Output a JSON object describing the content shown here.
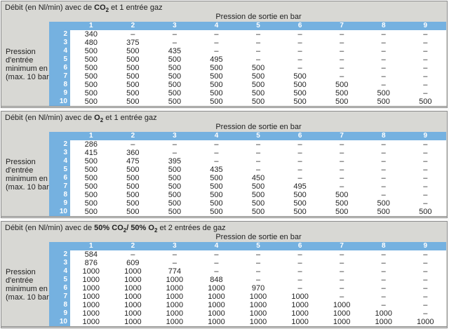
{
  "colors": {
    "header_blue": "#75b1e0",
    "block_bg": "#d8d8d4",
    "cell_bg": "#ffffff",
    "border": "#8d8d8d",
    "text": "#1f1f1f"
  },
  "shared": {
    "outlet_header": "Pression de sortie en bar",
    "row_label_lines": [
      "Pression",
      "d'entrée",
      "minimum en bar",
      "(max. 10 bar)"
    ],
    "outlet_pressures": [
      "1",
      "2",
      "3",
      "4",
      "5",
      "6",
      "7",
      "8",
      "9"
    ],
    "inlet_pressures": [
      "2",
      "3",
      "4",
      "5",
      "6",
      "7",
      "8",
      "9",
      "10"
    ]
  },
  "tables": [
    {
      "gas": "CO2",
      "title_segments": [
        {
          "text": "Débit (en Nl/min) avec de "
        },
        {
          "text": "CO",
          "bold": true
        },
        {
          "text": "2",
          "bold": true,
          "sub": true
        },
        {
          "text": " et 1 entrée gaz"
        }
      ],
      "row_values": [
        [
          "340",
          "–",
          "–",
          "–",
          "–",
          "–",
          "–",
          "–",
          "–"
        ],
        [
          "480",
          "375",
          "–",
          "–",
          "–",
          "–",
          "–",
          "–",
          "–"
        ],
        [
          "500",
          "500",
          "435",
          "–",
          "–",
          "–",
          "–",
          "–",
          "–"
        ],
        [
          "500",
          "500",
          "500",
          "495",
          "–",
          "–",
          "–",
          "–",
          "–"
        ],
        [
          "500",
          "500",
          "500",
          "500",
          "500",
          "–",
          "–",
          "–",
          "–"
        ],
        [
          "500",
          "500",
          "500",
          "500",
          "500",
          "500",
          "–",
          "–",
          "–"
        ],
        [
          "500",
          "500",
          "500",
          "500",
          "500",
          "500",
          "500",
          "–",
          "–"
        ],
        [
          "500",
          "500",
          "500",
          "500",
          "500",
          "500",
          "500",
          "500",
          "–"
        ],
        [
          "500",
          "500",
          "500",
          "500",
          "500",
          "500",
          "500",
          "500",
          "500"
        ]
      ]
    },
    {
      "gas": "O2",
      "title_segments": [
        {
          "text": "Débit (en Nl/min) avec de "
        },
        {
          "text": "O",
          "bold": true
        },
        {
          "text": "2",
          "bold": true,
          "sub": true
        },
        {
          "text": " et 1 entrée gaz"
        }
      ],
      "row_values": [
        [
          "286",
          "–",
          "–",
          "–",
          "–",
          "–",
          "–",
          "–",
          "–"
        ],
        [
          "415",
          "360",
          "–",
          "–",
          "–",
          "–",
          "–",
          "–",
          "–"
        ],
        [
          "500",
          "475",
          "395",
          "–",
          "–",
          "–",
          "–",
          "–",
          "–"
        ],
        [
          "500",
          "500",
          "500",
          "435",
          "–",
          "–",
          "–",
          "–",
          "–"
        ],
        [
          "500",
          "500",
          "500",
          "500",
          "450",
          "–",
          "–",
          "–",
          "–"
        ],
        [
          "500",
          "500",
          "500",
          "500",
          "500",
          "495",
          "–",
          "–",
          "–"
        ],
        [
          "500",
          "500",
          "500",
          "500",
          "500",
          "500",
          "500",
          "–",
          "–"
        ],
        [
          "500",
          "500",
          "500",
          "500",
          "500",
          "500",
          "500",
          "500",
          "–"
        ],
        [
          "500",
          "500",
          "500",
          "500",
          "500",
          "500",
          "500",
          "500",
          "500"
        ]
      ]
    },
    {
      "gas": "50% CO2 / 50% O2",
      "title_segments": [
        {
          "text": "Débit (en Nl/min) avec de "
        },
        {
          "text": "50% CO",
          "bold": true
        },
        {
          "text": "2",
          "bold": true,
          "sub": true
        },
        {
          "text": "/ 50% O",
          "bold": true
        },
        {
          "text": "2",
          "bold": true,
          "sub": true
        },
        {
          "text": " et 2 entrées de gaz"
        }
      ],
      "row_values": [
        [
          "584",
          "–",
          "–",
          "–",
          "–",
          "–",
          "–",
          "–",
          "–"
        ],
        [
          "876",
          "609",
          "–",
          "–",
          "–",
          "–",
          "–",
          "–",
          "–"
        ],
        [
          "1000",
          "1000",
          "774",
          "–",
          "–",
          "–",
          "–",
          "–",
          "–"
        ],
        [
          "1000",
          "1000",
          "1000",
          "848",
          "–",
          "–",
          "–",
          "–",
          "–"
        ],
        [
          "1000",
          "1000",
          "1000",
          "1000",
          "970",
          "–",
          "–",
          "–",
          "–"
        ],
        [
          "1000",
          "1000",
          "1000",
          "1000",
          "1000",
          "1000",
          "–",
          "–",
          "–"
        ],
        [
          "1000",
          "1000",
          "1000",
          "1000",
          "1000",
          "1000",
          "1000",
          "–",
          "–"
        ],
        [
          "1000",
          "1000",
          "1000",
          "1000",
          "1000",
          "1000",
          "1000",
          "1000",
          "–"
        ],
        [
          "1000",
          "1000",
          "1000",
          "1000",
          "1000",
          "1000",
          "1000",
          "1000",
          "1000"
        ]
      ]
    }
  ]
}
